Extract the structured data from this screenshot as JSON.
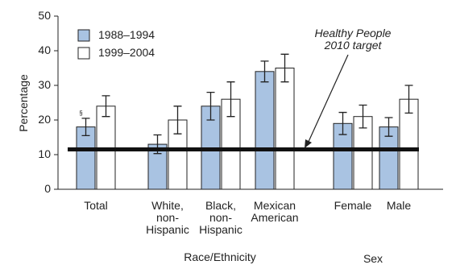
{
  "chart_data": {
    "type": "bar",
    "y_label": "Percentage",
    "categories": [
      "Total",
      "White,\nnon-\nHispanic",
      "Black,\nnon-\nHispanic",
      "Mexican\nAmerican",
      "Female",
      "Male"
    ],
    "groups": [
      {
        "label": "Race/Ethnicity"
      },
      {
        "label": "Sex"
      }
    ],
    "series": [
      {
        "name": "1988–1994",
        "color": "#a9c3e2",
        "values": [
          18,
          13,
          24,
          34,
          19,
          18
        ],
        "errors": [
          2.5,
          2.7,
          4,
          3,
          3.2,
          2.7
        ]
      },
      {
        "name": "1999–2004",
        "color": "#ffffff",
        "values": [
          24,
          20,
          26,
          35,
          21,
          26
        ],
        "errors": [
          3,
          4,
          5,
          4,
          3.3,
          4
        ]
      }
    ],
    "footnote_marker": "§",
    "target": {
      "value": 11.5,
      "label": "Healthy People\n2010 target"
    },
    "ylim": [
      0,
      50
    ],
    "yticks": [
      0,
      10,
      20,
      30,
      40,
      50
    ]
  }
}
